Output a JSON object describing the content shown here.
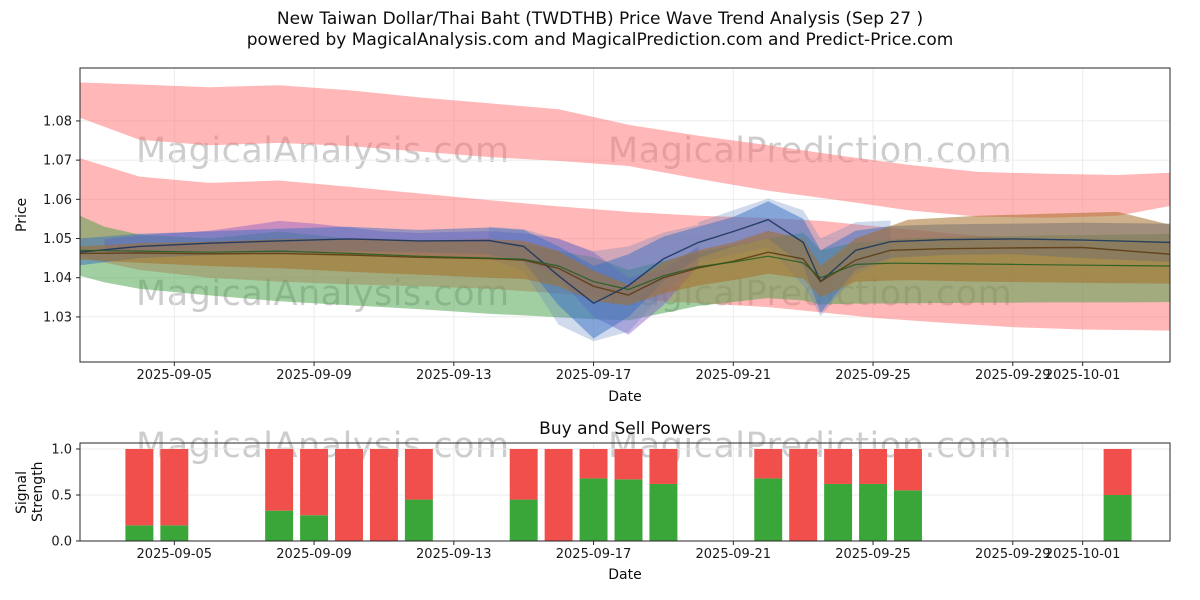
{
  "title": {
    "line1": "New Taiwan Dollar/Thai Baht (TWDTHB) Price Wave Trend Analysis (Sep 27 )",
    "line2": "powered by MagicalAnalysis.com and MagicalPrediction.com and Predict-Price.com"
  },
  "watermark": {
    "left": "MagicalAnalysis.com",
    "right": "MagicalPrediction.com"
  },
  "chart_data": [
    {
      "type": "area",
      "title": "",
      "xlabel": "Date",
      "ylabel": "Price",
      "x_base_date": "2025-09-02",
      "xlim": [
        0.3,
        31.5
      ],
      "ylim": [
        1.0185,
        1.0935
      ],
      "grid": true,
      "xticks": [
        {
          "v": 3,
          "label": "2025-09-05"
        },
        {
          "v": 7,
          "label": "2025-09-09"
        },
        {
          "v": 11,
          "label": "2025-09-13"
        },
        {
          "v": 15,
          "label": "2025-09-17"
        },
        {
          "v": 19,
          "label": "2025-09-21"
        },
        {
          "v": 23,
          "label": "2025-09-25"
        },
        {
          "v": 27,
          "label": "2025-09-29"
        },
        {
          "v": 29,
          "label": "2025-10-01"
        }
      ],
      "yticks": [
        {
          "v": 1.03,
          "label": "1.03"
        },
        {
          "v": 1.04,
          "label": "1.04"
        },
        {
          "v": 1.05,
          "label": "1.05"
        },
        {
          "v": 1.06,
          "label": "1.06"
        },
        {
          "v": 1.07,
          "label": "1.07"
        },
        {
          "v": 1.08,
          "label": "1.08"
        }
      ],
      "bands": [
        {
          "name": "upper-red-band",
          "color": "#ff7070",
          "opacity": 0.5,
          "x": [
            0.3,
            2,
            4,
            6,
            8,
            10,
            12,
            14,
            16,
            18,
            20,
            22,
            24,
            26,
            28,
            30,
            31.5
          ],
          "upper": [
            1.0898,
            1.0893,
            1.0886,
            1.0891,
            1.0878,
            1.086,
            1.0845,
            1.083,
            1.079,
            1.0762,
            1.0738,
            1.0712,
            1.0688,
            1.067,
            1.0665,
            1.0662,
            1.0668
          ],
          "lower": [
            1.0808,
            1.0752,
            1.0738,
            1.0744,
            1.0736,
            1.0722,
            1.0708,
            1.0698,
            1.0685,
            1.0652,
            1.0622,
            1.0598,
            1.0572,
            1.0556,
            1.0553,
            1.0558,
            1.0583
          ]
        },
        {
          "name": "wide-red-band",
          "color": "#ff7070",
          "opacity": 0.5,
          "x": [
            0.3,
            2,
            4,
            6,
            8,
            10,
            12,
            14,
            15,
            16,
            18,
            20,
            21.5,
            23,
            25,
            27,
            29,
            31.5
          ],
          "upper": [
            1.0705,
            1.0658,
            1.0642,
            1.0648,
            1.0632,
            1.0615,
            1.0598,
            1.0582,
            1.0575,
            1.0568,
            1.0558,
            1.0552,
            1.0545,
            1.0532,
            1.0515,
            1.05,
            1.0492,
            1.049
          ],
          "lower": [
            1.0452,
            1.042,
            1.04,
            1.039,
            1.0383,
            1.0378,
            1.0372,
            1.036,
            1.0352,
            1.0345,
            1.0335,
            1.0325,
            1.0312,
            1.0298,
            1.0285,
            1.0274,
            1.0268,
            1.0265
          ]
        },
        {
          "name": "green-band",
          "color": "#44a044",
          "opacity": 0.5,
          "x": [
            0.3,
            1,
            2,
            4,
            6,
            8,
            10,
            12,
            13,
            14,
            15,
            16,
            18,
            20,
            21,
            21.5,
            22.5,
            24,
            26,
            28,
            30,
            31.5
          ],
          "upper": [
            1.0558,
            1.053,
            1.051,
            1.05,
            1.0518,
            1.05,
            1.0494,
            1.049,
            1.0486,
            1.0468,
            1.0452,
            1.042,
            1.0465,
            1.05,
            1.0515,
            1.047,
            1.049,
            1.05,
            1.0505,
            1.0508,
            1.051,
            1.0512
          ],
          "lower": [
            1.0405,
            1.0388,
            1.0372,
            1.0355,
            1.034,
            1.033,
            1.032,
            1.0308,
            1.0304,
            1.0299,
            1.0294,
            1.0291,
            1.0328,
            1.0348,
            1.0342,
            1.0332,
            1.0334,
            1.0335,
            1.0336,
            1.0337,
            1.0337,
            1.0338
          ]
        },
        {
          "name": "purple-band",
          "color": "#8458c8",
          "opacity": 0.45,
          "x": [
            1,
            2,
            3,
            4,
            5,
            6,
            7,
            8,
            9,
            10,
            11,
            12,
            13,
            14,
            15,
            16,
            17,
            18
          ],
          "upper": [
            1.0498,
            1.0508,
            1.0514,
            1.052,
            1.0532,
            1.0545,
            1.0538,
            1.0528,
            1.0518,
            1.0514,
            1.0517,
            1.0519,
            1.0513,
            1.05,
            1.0465,
            1.04,
            1.042,
            1.048
          ],
          "lower": [
            1.0458,
            1.0464,
            1.0467,
            1.0469,
            1.047,
            1.0468,
            1.0465,
            1.0462,
            1.0459,
            1.0457,
            1.0454,
            1.045,
            1.0443,
            1.04,
            1.03,
            1.0255,
            1.033,
            1.043
          ]
        },
        {
          "name": "blue-halo-dip",
          "color": "#5f85c0",
          "opacity": 0.3,
          "x": [
            12,
            13,
            14,
            15,
            16,
            17,
            18
          ],
          "upper": [
            1.053,
            1.0524,
            1.0498,
            1.0468,
            1.048,
            1.0515,
            1.0535
          ],
          "lower": [
            1.0448,
            1.0418,
            1.028,
            1.0238,
            1.0262,
            1.036,
            1.0438
          ]
        },
        {
          "name": "blue-halo-peak",
          "color": "#5f85c0",
          "opacity": 0.3,
          "x": [
            18,
            19,
            20,
            21,
            21.5,
            22.5,
            23.5
          ],
          "upper": [
            1.0542,
            1.0572,
            1.0602,
            1.0572,
            1.05,
            1.0542,
            1.0546
          ],
          "lower": [
            1.0438,
            1.0458,
            1.0478,
            1.038,
            1.0302,
            1.0408,
            1.0448
          ]
        },
        {
          "name": "blue-band",
          "color": "#3a6fc4",
          "opacity": 0.5,
          "x": [
            0.3,
            2,
            4,
            6,
            8,
            10,
            12,
            13,
            14,
            15,
            16,
            17,
            18,
            19,
            20,
            21,
            21.5,
            22.5,
            23.5,
            25,
            27,
            29,
            31.5
          ],
          "upper": [
            1.05,
            1.0512,
            1.0518,
            1.0525,
            1.053,
            1.0522,
            1.0528,
            1.0522,
            1.048,
            1.043,
            1.046,
            1.0505,
            1.053,
            1.0555,
            1.0595,
            1.055,
            1.047,
            1.052,
            1.0532,
            1.0536,
            1.0538,
            1.054,
            1.0538
          ],
          "lower": [
            1.0432,
            1.045,
            1.0458,
            1.0462,
            1.0468,
            1.0465,
            1.046,
            1.044,
            1.033,
            1.0245,
            1.03,
            1.039,
            1.045,
            1.048,
            1.05,
            1.043,
            1.031,
            1.042,
            1.045,
            1.0458,
            1.046,
            1.045,
            1.044
          ]
        },
        {
          "name": "brown-band",
          "color": "#a5702a",
          "opacity": 0.55,
          "x": [
            0.3,
            2,
            4,
            6,
            8,
            10,
            12,
            13,
            14,
            15,
            16,
            17,
            18,
            19,
            20,
            21,
            21.5,
            22.5,
            24,
            26,
            28,
            30,
            31.5
          ],
          "upper": [
            1.048,
            1.0488,
            1.0492,
            1.0498,
            1.05,
            1.0495,
            1.0498,
            1.0494,
            1.0468,
            1.0418,
            1.0382,
            1.044,
            1.047,
            1.049,
            1.052,
            1.0498,
            1.043,
            1.05,
            1.0548,
            1.0558,
            1.0563,
            1.0568,
            1.0535
          ],
          "lower": [
            1.0446,
            1.0438,
            1.043,
            1.0424,
            1.0415,
            1.0408,
            1.04,
            1.0397,
            1.0378,
            1.034,
            1.033,
            1.036,
            1.038,
            1.0394,
            1.041,
            1.0398,
            1.035,
            1.039,
            1.0394,
            1.039,
            1.0388,
            1.0386,
            1.0385
          ]
        }
      ],
      "lines": [
        {
          "name": "navy-center-line",
          "color": "#16325c",
          "width": 1.4,
          "x": [
            0.3,
            2,
            4,
            6,
            8,
            10,
            12,
            13,
            14,
            15,
            16,
            17,
            18,
            19,
            20,
            21,
            21.5,
            22.5,
            23.5,
            25,
            27,
            29,
            31.5
          ],
          "y": [
            1.0465,
            1.048,
            1.0488,
            1.0494,
            1.0499,
            1.0494,
            1.0495,
            1.048,
            1.0405,
            1.0335,
            1.038,
            1.0448,
            1.049,
            1.0518,
            1.0548,
            1.049,
            1.039,
            1.047,
            1.0492,
            1.0497,
            1.0499,
            1.0496,
            1.049
          ]
        },
        {
          "name": "darkbrown-center-line",
          "color": "#5a3a10",
          "width": 1.4,
          "x": [
            0.3,
            2,
            4,
            6,
            8,
            10,
            12,
            13,
            14,
            15,
            16,
            17,
            18,
            19,
            20,
            21,
            21.5,
            22.5,
            23.5,
            25,
            27,
            29,
            31.5
          ],
          "y": [
            1.0462,
            1.0463,
            1.0461,
            1.0462,
            1.0458,
            1.0452,
            1.0449,
            1.0445,
            1.0424,
            1.0378,
            1.0356,
            1.04,
            1.0425,
            1.0442,
            1.0465,
            1.0448,
            1.039,
            1.0445,
            1.047,
            1.0474,
            1.0476,
            1.0477,
            1.046
          ]
        },
        {
          "name": "darkgreen-center-line",
          "color": "#1e5c1e",
          "width": 1.2,
          "x": [
            0.3,
            2,
            4,
            6,
            8,
            10,
            12,
            13,
            14,
            15,
            16,
            17,
            18,
            19,
            20,
            21,
            21.5,
            22.5,
            23.5,
            25,
            27,
            29,
            31.5
          ],
          "y": [
            1.047,
            1.0468,
            1.0465,
            1.0468,
            1.0462,
            1.0455,
            1.045,
            1.0447,
            1.043,
            1.039,
            1.037,
            1.0405,
            1.0428,
            1.044,
            1.0455,
            1.0438,
            1.04,
            1.0434,
            1.0437,
            1.0436,
            1.0434,
            1.0432,
            1.043
          ]
        }
      ]
    },
    {
      "type": "bar",
      "stacked": true,
      "title": "Buy and Sell Powers",
      "xlabel": "Date",
      "ylabel": "Signal Strength",
      "x_base_date": "2025-09-02",
      "xlim": [
        0.3,
        31.5
      ],
      "ylim": [
        0,
        1.065
      ],
      "bar_width_days": 0.8,
      "grid": true,
      "xticks": [
        {
          "v": 3,
          "label": "2025-09-05"
        },
        {
          "v": 7,
          "label": "2025-09-09"
        },
        {
          "v": 11,
          "label": "2025-09-13"
        },
        {
          "v": 15,
          "label": "2025-09-17"
        },
        {
          "v": 19,
          "label": "2025-09-21"
        },
        {
          "v": 23,
          "label": "2025-09-25"
        },
        {
          "v": 27,
          "label": "2025-09-29"
        },
        {
          "v": 29,
          "label": "2025-10-01"
        }
      ],
      "yticks": [
        {
          "v": 0,
          "label": "0.0"
        },
        {
          "v": 0.5,
          "label": "0.5"
        },
        {
          "v": 1.0,
          "label": "1.0"
        }
      ],
      "x": [
        2,
        3,
        6,
        7,
        8,
        9,
        10,
        13,
        14,
        15,
        16,
        17,
        20,
        21,
        22,
        23,
        24,
        30
      ],
      "dates": [
        "2025-09-04",
        "2025-09-05",
        "2025-09-08",
        "2025-09-09",
        "2025-09-10",
        "2025-09-11",
        "2025-09-12",
        "2025-09-15",
        "2025-09-16",
        "2025-09-17",
        "2025-09-18",
        "2025-09-19",
        "2025-09-22",
        "2025-09-23",
        "2025-09-24",
        "2025-09-25",
        "2025-09-26",
        "2025-10-02"
      ],
      "series": [
        {
          "name": "buy-strength",
          "color": "#3aa63a",
          "values": [
            0.17,
            0.17,
            0.33,
            0.28,
            0.0,
            0.0,
            0.45,
            0.45,
            0.0,
            0.68,
            0.67,
            0.62,
            0.68,
            0.0,
            0.62,
            0.62,
            0.55,
            0.5
          ]
        },
        {
          "name": "sell-strength",
          "color": "#f14f4b",
          "values": [
            0.83,
            0.83,
            0.67,
            0.72,
            1.0,
            1.0,
            0.55,
            0.55,
            1.0,
            0.32,
            0.33,
            0.38,
            0.32,
            1.0,
            0.38,
            0.38,
            0.45,
            0.5
          ]
        }
      ]
    }
  ]
}
